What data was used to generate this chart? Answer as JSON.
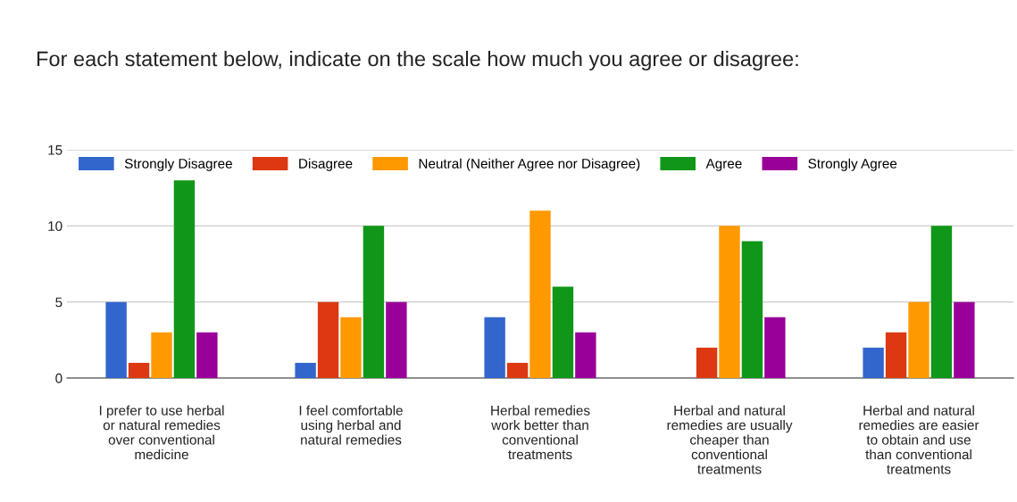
{
  "chart_data": {
    "type": "bar",
    "title": "For each statement below, indicate on the scale how much you agree or disagree:",
    "categories": [
      "I prefer to use herbal\nor natural remedies\nover conventional\nmedicine",
      "I feel comfortable\nusing herbal and\nnatural remedies",
      "Herbal remedies\nwork better than\nconventional\ntreatments",
      "Herbal and natural\nremedies are usually\ncheaper than\nconventional\ntreatments",
      "Herbal and natural\nremedies are easier\nto obtain and use\nthan conventional\ntreatments"
    ],
    "series": [
      {
        "name": "Strongly Disagree",
        "color": "#3366cc",
        "values": [
          5,
          1,
          4,
          0,
          2
        ]
      },
      {
        "name": "Disagree",
        "color": "#dc3912",
        "values": [
          1,
          5,
          1,
          2,
          3
        ]
      },
      {
        "name": "Neutral (Neither Agree nor Disagree)",
        "color": "#ff9900",
        "values": [
          3,
          4,
          11,
          10,
          5
        ]
      },
      {
        "name": "Agree",
        "color": "#109618",
        "values": [
          13,
          10,
          6,
          9,
          10
        ]
      },
      {
        "name": "Strongly Agree",
        "color": "#990099",
        "values": [
          3,
          5,
          3,
          4,
          5
        ]
      }
    ],
    "ylim": [
      0,
      15
    ],
    "yticks": [
      0,
      5,
      10,
      15
    ],
    "grid": "y",
    "legend": "top"
  }
}
